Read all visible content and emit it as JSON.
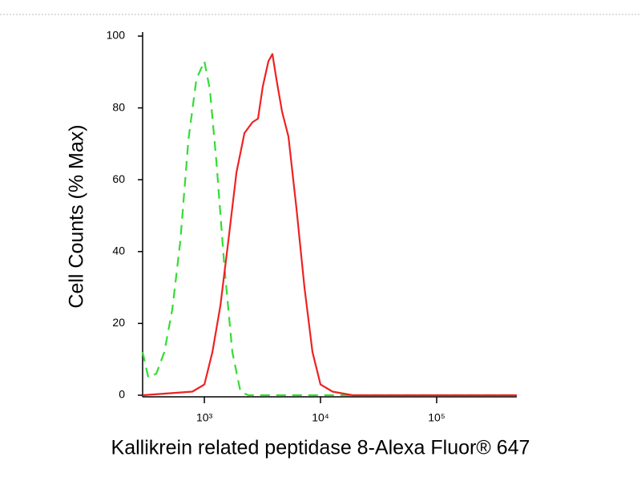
{
  "chart_data": {
    "type": "line",
    "y_label": "Cell Counts (% Max)",
    "x_label": "Kallikrein related peptidase 8-Alexa Fluor® 647",
    "xscale": "log",
    "xlim": [
      294,
      490000
    ],
    "ylim": [
      0,
      100
    ],
    "xticks": [
      {
        "value": 1000,
        "label": "10³"
      },
      {
        "value": 10000,
        "label": "10⁴"
      },
      {
        "value": 100000,
        "label": "10⁵"
      }
    ],
    "yticks": [
      0,
      20,
      40,
      60,
      80,
      100
    ],
    "series": [
      {
        "color": "#33dd33",
        "dash": true,
        "x": [
          294,
          329,
          386,
          452,
          530,
          621,
          728,
          853,
          1000,
          1117,
          1269,
          1487,
          1743,
          2044,
          2395,
          10000,
          490000
        ],
        "values": [
          12,
          5,
          6,
          12,
          24,
          43,
          71,
          88,
          93,
          85,
          65,
          36,
          12,
          1,
          0,
          0,
          0
        ]
      },
      {
        "color": "#ee2222",
        "dash": false,
        "x": [
          294,
          788,
          1000,
          1172,
          1374,
          1610,
          1888,
          2213,
          2594,
          2897,
          3186,
          3563,
          3856,
          4175,
          4667,
          5300,
          6211,
          7280,
          8532,
          10000,
          12680,
          18880,
          490000
        ],
        "values": [
          0,
          1,
          3,
          12,
          25,
          43,
          62,
          73,
          76,
          77,
          86,
          93,
          95,
          88,
          79,
          72,
          52,
          30,
          12,
          3,
          1,
          0,
          0
        ]
      }
    ]
  }
}
